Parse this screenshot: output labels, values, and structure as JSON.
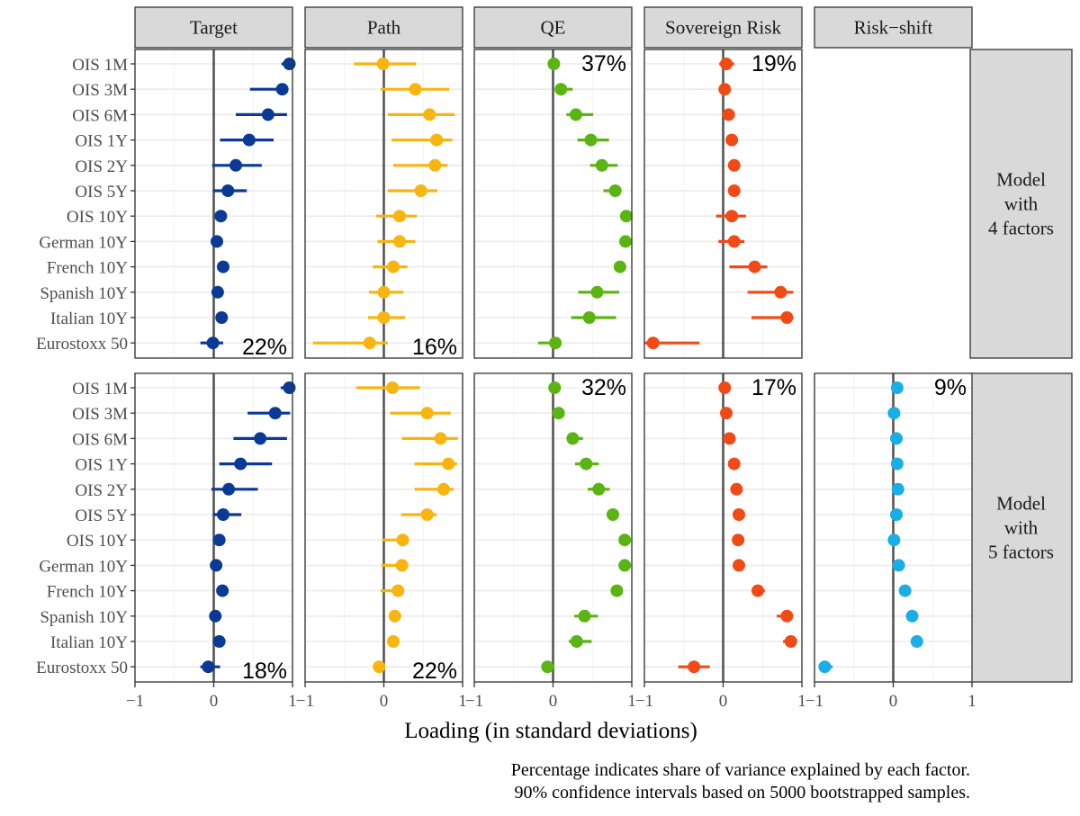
{
  "chart_data": {
    "type": "scatter",
    "subtype": "dot-and-whisker faceted grid",
    "x_axis": {
      "label": "Loading (in standard deviations)",
      "range": [
        -1,
        1
      ],
      "ticks": [
        -1,
        0,
        1
      ],
      "tick_labels": [
        "−1",
        "0",
        "1"
      ]
    },
    "y_categories": [
      "OIS 1M",
      "OIS 3M",
      "OIS 6M",
      "OIS 1Y",
      "OIS 2Y",
      "OIS 5Y",
      "OIS 10Y",
      "German 10Y",
      "French 10Y",
      "Spanish 10Y",
      "Italian 10Y",
      "Eurostoxx 50"
    ],
    "columns": [
      {
        "label": "Target",
        "color": "#0b3a96"
      },
      {
        "label": "Path",
        "color": "#f8b40f"
      },
      {
        "label": "QE",
        "color": "#5ab412"
      },
      {
        "label": "Sovereign Risk",
        "color": "#f24a16"
      },
      {
        "label": "Risk−shift",
        "color": "#1aaee6"
      }
    ],
    "rows": [
      {
        "label_lines": [
          "Model",
          "with",
          "4 factors"
        ],
        "panels": [
          {
            "factor": "Target",
            "pct": "22%",
            "pct_pos": "bottom",
            "values": [
              0.96,
              0.87,
              0.69,
              0.45,
              0.28,
              0.18,
              0.09,
              0.04,
              0.12,
              0.05,
              0.1,
              -0.01
            ],
            "ci": [
              [
                0.86,
                0.98
              ],
              [
                0.46,
                0.94
              ],
              [
                0.28,
                0.93
              ],
              [
                0.08,
                0.76
              ],
              [
                -0.02,
                0.61
              ],
              [
                -0.01,
                0.42
              ],
              [
                0.04,
                0.15
              ],
              [
                0.0,
                0.07
              ],
              [
                0.08,
                0.15
              ],
              [
                0.0,
                0.1
              ],
              [
                0.05,
                0.15
              ],
              [
                -0.17,
                0.12
              ]
            ]
          },
          {
            "factor": "Path",
            "pct": "16%",
            "pct_pos": "bottom",
            "values": [
              -0.01,
              0.4,
              0.58,
              0.67,
              0.65,
              0.47,
              0.2,
              0.2,
              0.12,
              0.0,
              0.0,
              -0.18
            ],
            "ci": [
              [
                -0.38,
                0.41
              ],
              [
                -0.04,
                0.83
              ],
              [
                0.05,
                0.9
              ],
              [
                0.1,
                0.87
              ],
              [
                0.12,
                0.81
              ],
              [
                0.05,
                0.68
              ],
              [
                -0.1,
                0.42
              ],
              [
                -0.08,
                0.4
              ],
              [
                -0.14,
                0.3
              ],
              [
                -0.19,
                0.25
              ],
              [
                -0.2,
                0.27
              ],
              [
                -0.9,
                0.05
              ]
            ]
          },
          {
            "factor": "QE",
            "pct": "37%",
            "pct_pos": "top",
            "values": [
              0.01,
              0.1,
              0.29,
              0.48,
              0.62,
              0.79,
              0.93,
              0.92,
              0.85,
              0.56,
              0.46,
              0.03
            ],
            "ci": [
              [
                -0.02,
                0.05
              ],
              [
                0.03,
                0.25
              ],
              [
                0.17,
                0.51
              ],
              [
                0.31,
                0.71
              ],
              [
                0.47,
                0.82
              ],
              [
                0.64,
                0.87
              ],
              [
                0.88,
                0.98
              ],
              [
                0.89,
                0.95
              ],
              [
                0.79,
                0.91
              ],
              [
                0.32,
                0.84
              ],
              [
                0.23,
                0.8
              ],
              [
                -0.19,
                0.1
              ]
            ]
          },
          {
            "factor": "Sovereign Risk",
            "pct": "19%",
            "pct_pos": "top",
            "values": [
              0.04,
              0.02,
              0.07,
              0.11,
              0.14,
              0.14,
              0.11,
              0.14,
              0.4,
              0.73,
              0.81,
              -0.89
            ],
            "ci": [
              [
                -0.05,
                0.14
              ],
              [
                0.0,
                0.05
              ],
              [
                0.04,
                0.1
              ],
              [
                0.08,
                0.15
              ],
              [
                0.1,
                0.18
              ],
              [
                0.09,
                0.18
              ],
              [
                -0.09,
                0.29
              ],
              [
                -0.06,
                0.27
              ],
              [
                0.08,
                0.56
              ],
              [
                0.31,
                0.89
              ],
              [
                0.36,
                0.89
              ],
              [
                -1.0,
                -0.3
              ]
            ]
          },
          {
            "factor": "Risk−shift",
            "pct": "",
            "pct_pos": "top",
            "values": [],
            "ci": []
          }
        ]
      },
      {
        "label_lines": [
          "Model",
          "with",
          "5 factors"
        ],
        "panels": [
          {
            "factor": "Target",
            "pct": "18%",
            "pct_pos": "bottom",
            "values": [
              0.96,
              0.78,
              0.59,
              0.34,
              0.19,
              0.12,
              0.07,
              0.03,
              0.11,
              0.02,
              0.07,
              -0.07
            ],
            "ci": [
              [
                0.85,
                0.98
              ],
              [
                0.43,
                0.97
              ],
              [
                0.25,
                0.93
              ],
              [
                0.07,
                0.74
              ],
              [
                -0.03,
                0.56
              ],
              [
                -0.01,
                0.35
              ],
              [
                0.03,
                0.12
              ],
              [
                0.0,
                0.06
              ],
              [
                0.08,
                0.13
              ],
              [
                0.0,
                0.05
              ],
              [
                0.0,
                0.14
              ],
              [
                -0.17,
                0.08
              ]
            ]
          },
          {
            "factor": "Path",
            "pct": "22%",
            "pct_pos": "bottom",
            "values": [
              0.11,
              0.55,
              0.72,
              0.82,
              0.76,
              0.55,
              0.24,
              0.23,
              0.18,
              0.14,
              0.12,
              -0.06
            ],
            "ci": [
              [
                -0.35,
                0.46
              ],
              [
                0.08,
                0.85
              ],
              [
                0.23,
                0.94
              ],
              [
                0.39,
                0.93
              ],
              [
                0.39,
                0.89
              ],
              [
                0.22,
                0.67
              ],
              [
                -0.02,
                0.3
              ],
              [
                -0.03,
                0.28
              ],
              [
                -0.04,
                0.24
              ],
              [
                0.09,
                0.19
              ],
              [
                0.07,
                0.17
              ],
              [
                -0.1,
                -0.03
              ]
            ]
          },
          {
            "factor": "QE",
            "pct": "32%",
            "pct_pos": "top",
            "values": [
              0.02,
              0.07,
              0.25,
              0.42,
              0.58,
              0.76,
              0.91,
              0.91,
              0.81,
              0.4,
              0.3,
              -0.07
            ],
            "ci": [
              [
                -0.01,
                0.04
              ],
              [
                0.04,
                0.09
              ],
              [
                0.18,
                0.38
              ],
              [
                0.28,
                0.58
              ],
              [
                0.44,
                0.72
              ],
              [
                0.68,
                0.8
              ],
              [
                0.88,
                0.94
              ],
              [
                0.88,
                0.94
              ],
              [
                0.76,
                0.86
              ],
              [
                0.27,
                0.57
              ],
              [
                0.2,
                0.49
              ],
              [
                -0.14,
                0.0
              ]
            ]
          },
          {
            "factor": "Sovereign Risk",
            "pct": "17%",
            "pct_pos": "top",
            "values": [
              0.02,
              0.04,
              0.08,
              0.14,
              0.17,
              0.2,
              0.19,
              0.2,
              0.44,
              0.81,
              0.86,
              -0.37
            ],
            "ci": [
              [
                -0.02,
                0.06
              ],
              [
                0.02,
                0.06
              ],
              [
                0.06,
                0.11
              ],
              [
                0.11,
                0.18
              ],
              [
                0.14,
                0.21
              ],
              [
                0.16,
                0.23
              ],
              [
                0.15,
                0.23
              ],
              [
                0.16,
                0.24
              ],
              [
                0.36,
                0.53
              ],
              [
                0.68,
                0.88
              ],
              [
                0.76,
                0.92
              ],
              [
                -0.57,
                -0.17
              ]
            ]
          },
          {
            "factor": "Risk−shift",
            "pct": "9%",
            "pct_pos": "top",
            "values": [
              0.05,
              0.01,
              0.04,
              0.05,
              0.06,
              0.04,
              0.01,
              0.07,
              0.15,
              0.24,
              0.3,
              -0.87
            ],
            "ci": [
              [
                0.02,
                0.09
              ],
              [
                -0.01,
                0.03
              ],
              [
                0.02,
                0.06
              ],
              [
                0.03,
                0.07
              ],
              [
                0.04,
                0.08
              ],
              [
                0.02,
                0.06
              ],
              [
                -0.01,
                0.03
              ],
              [
                0.04,
                0.1
              ],
              [
                0.11,
                0.19
              ],
              [
                0.19,
                0.3
              ],
              [
                0.24,
                0.36
              ],
              [
                -0.94,
                -0.77
              ]
            ]
          }
        ]
      }
    ],
    "caption_lines": [
      "Percentage indicates share of variance explained by each factor.",
      "90% confidence intervals based on 5000 bootstrapped samples."
    ],
    "grid": true
  }
}
